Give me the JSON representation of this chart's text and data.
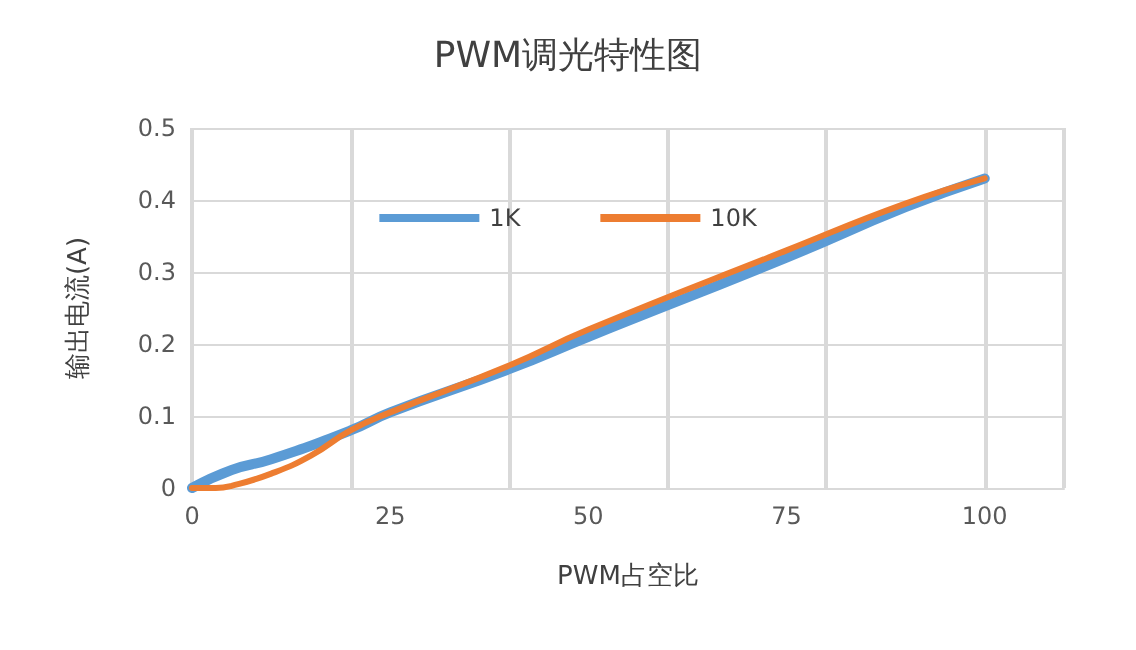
{
  "chart_data": {
    "type": "line",
    "title": "PWM调光特性图",
    "xlabel": "PWM占空比",
    "ylabel": "输出电流(A)",
    "xlim": [
      0,
      110
    ],
    "xticks": [
      0,
      25,
      50,
      75,
      100
    ],
    "ylim": [
      0,
      0.5
    ],
    "yticks": [
      0,
      0.1,
      0.2,
      0.3,
      0.4,
      0.5
    ],
    "grid": true,
    "legend": "top",
    "marker": "none",
    "line_style": "solid",
    "series": [
      {
        "name": "1K",
        "color": "#5b9bd5",
        "x": [
          0,
          5,
          10,
          20,
          25,
          40,
          50,
          75,
          90,
          100
        ],
        "values": [
          0,
          0.025,
          0.04,
          0.08,
          0.105,
          0.165,
          0.21,
          0.32,
          0.39,
          0.43
        ]
      },
      {
        "name": "10K",
        "color": "#ed7d31",
        "x": [
          0,
          3,
          5,
          10,
          15,
          20,
          25,
          40,
          50,
          75,
          90,
          100
        ],
        "values": [
          0,
          0,
          0.003,
          0.02,
          0.045,
          0.08,
          0.105,
          0.17,
          0.22,
          0.33,
          0.395,
          0.43
        ]
      }
    ]
  }
}
